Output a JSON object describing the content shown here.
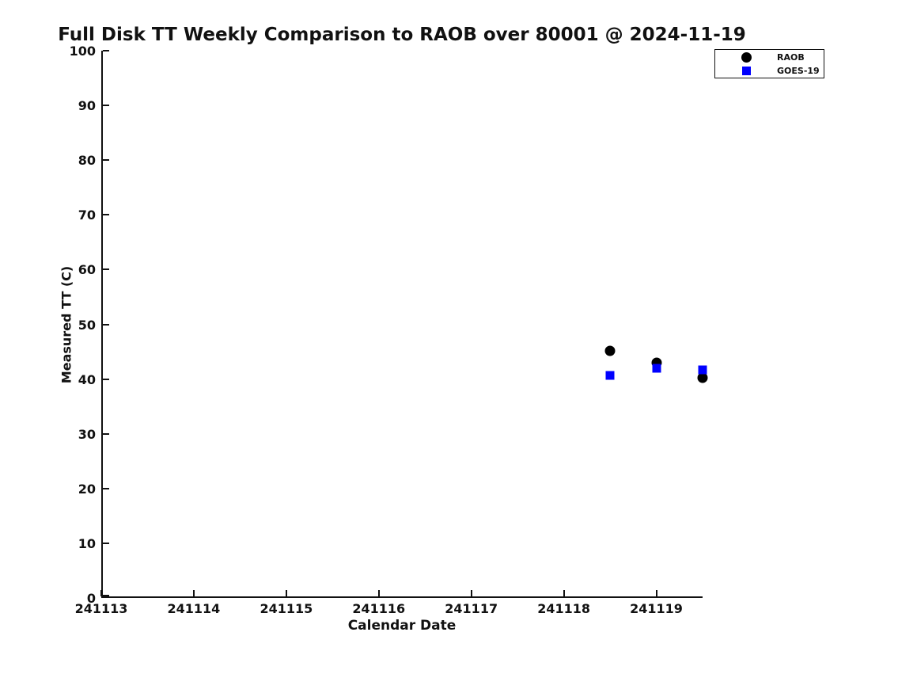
{
  "title": "Full Disk TT Weekly Comparison to RAOB over 80001 @ 2024-11-19",
  "axes": {
    "xlabel": "Calendar Date",
    "ylabel": "Measured TT (C)"
  },
  "legend": {
    "items": [
      {
        "label": "RAOB",
        "marker": "circle",
        "color": "#000000"
      },
      {
        "label": "GOES-19",
        "marker": "square",
        "color": "#0000ff"
      }
    ]
  },
  "colors": {
    "raob": "#000000",
    "goes19": "#0000ff",
    "axis": "#111111",
    "background": "#ffffff"
  },
  "chart_data": {
    "type": "scatter",
    "title": "Full Disk TT Weekly Comparison to RAOB over 80001 @ 2024-11-19",
    "xlabel": "Calendar Date",
    "ylabel": "Measured TT (C)",
    "xlim": [
      241113,
      241119.5
    ],
    "ylim": [
      0,
      100
    ],
    "x_ticks": [
      241113,
      241114,
      241115,
      241116,
      241117,
      241118,
      241119
    ],
    "y_ticks": [
      0,
      10,
      20,
      30,
      40,
      50,
      60,
      70,
      80,
      90,
      100
    ],
    "grid": false,
    "legend_position": "outside upper right",
    "series": [
      {
        "name": "RAOB",
        "marker": "circle",
        "color": "#000000",
        "marker_size": 13,
        "x": [
          241118.5,
          241119.0,
          241119.5
        ],
        "y": [
          45.2,
          43.0,
          40.2
        ]
      },
      {
        "name": "GOES-19",
        "marker": "square",
        "color": "#0000ff",
        "marker_size": 11,
        "x": [
          241118.5,
          241119.0,
          241119.5
        ],
        "y": [
          40.6,
          41.9,
          41.7
        ]
      }
    ]
  }
}
